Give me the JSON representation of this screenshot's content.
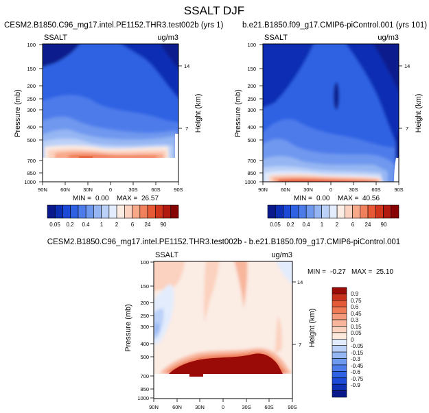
{
  "figure_title": "SSALT DJF",
  "colors": {
    "seq": [
      "#0a1a8c",
      "#0c2fb4",
      "#1c49d6",
      "#2e62e3",
      "#4d7cea",
      "#6f98ef",
      "#95b6f3",
      "#bcd1f8",
      "#e3ecfc",
      "#fbece4",
      "#fbd2bf",
      "#f8a98a",
      "#f1815d",
      "#e65a36",
      "#d0361b",
      "#b11a0e",
      "#870303"
    ],
    "diff": [
      "#0a1a8c",
      "#0c2fb4",
      "#1c49d6",
      "#2e62e3",
      "#4d7cea",
      "#6f98ef",
      "#95b6f3",
      "#bcd1f8",
      "#e3ecfc",
      "#fde9db",
      "#fbd2bf",
      "#f8b69c",
      "#f59a7a",
      "#ee7a56",
      "#e25a36",
      "#c8321c",
      "#9a0a06"
    ]
  },
  "chart_data": [
    {
      "type": "heatmap",
      "title": "CESM2.B1850.C96_mg17.intel.PE1152.THR3.test002b (yrs 1)",
      "variable": "SSALT",
      "units": "ug/m3",
      "ylabel": "Pressure (mb)",
      "ylabel_right": "Height (km)",
      "x_ticks": [
        "90N",
        "60N",
        "30N",
        "0",
        "30S",
        "60S",
        "90S"
      ],
      "y_ticks": [
        "100",
        "150",
        "200",
        "250",
        "300",
        "400",
        "500",
        "700",
        "850",
        "1000"
      ],
      "right_ticks": [
        "14",
        "7"
      ],
      "stats": {
        "min_label": "MIN =",
        "min": "0.00",
        "max_label": "MAX =",
        "max": "26.57"
      }
    },
    {
      "type": "heatmap",
      "title": "b.e21.B1850.f09_g17.CMIP6-piControl.001 (yrs 101)",
      "variable": "SSALT",
      "units": "ug/m3",
      "ylabel": "Pressure (mb)",
      "ylabel_right": "Height (km)",
      "x_ticks": [
        "90N",
        "60N",
        "30N",
        "0",
        "30S",
        "60S",
        "90S"
      ],
      "y_ticks": [
        "100",
        "150",
        "200",
        "250",
        "300",
        "400",
        "500",
        "700",
        "850",
        "1000"
      ],
      "right_ticks": [
        "14",
        "7"
      ],
      "stats": {
        "min_label": "MIN =",
        "min": "0.00",
        "max_label": "MAX =",
        "max": "40.56"
      }
    },
    {
      "type": "heatmap",
      "title": "CESM2.B1850.C96_mg17.intel.PE1152.THR3.test002b - b.e21.B1850.f09_g17.CMIP6-piControl.001",
      "variable": "SSALT",
      "units": "ug/m3",
      "ylabel": "Pressure (mb)",
      "ylabel_right": "Height (km)",
      "x_ticks": [
        "90N",
        "60N",
        "30N",
        "0",
        "30S",
        "60S",
        "90S"
      ],
      "y_ticks": [
        "100",
        "150",
        "200",
        "250",
        "300",
        "400",
        "500",
        "700",
        "850",
        "1000"
      ],
      "right_ticks": [
        "14",
        "7"
      ],
      "stats": {
        "min_label": "MIN =",
        "min": "-0.27",
        "max_label": "MAX =",
        "max": "25.10"
      }
    }
  ],
  "colorbars": {
    "sequential": {
      "labels": [
        "0.05",
        "0.2",
        "0.4",
        "1",
        "2",
        "6",
        "24",
        "90"
      ]
    },
    "difference": {
      "labels": [
        "0.9",
        "0.75",
        "0.6",
        "0.45",
        "0.3",
        "0.15",
        "0.05",
        "0",
        "-0.05",
        "-0.15",
        "-0.3",
        "-0.45",
        "-0.6",
        "-0.75",
        "-0.9"
      ]
    }
  }
}
